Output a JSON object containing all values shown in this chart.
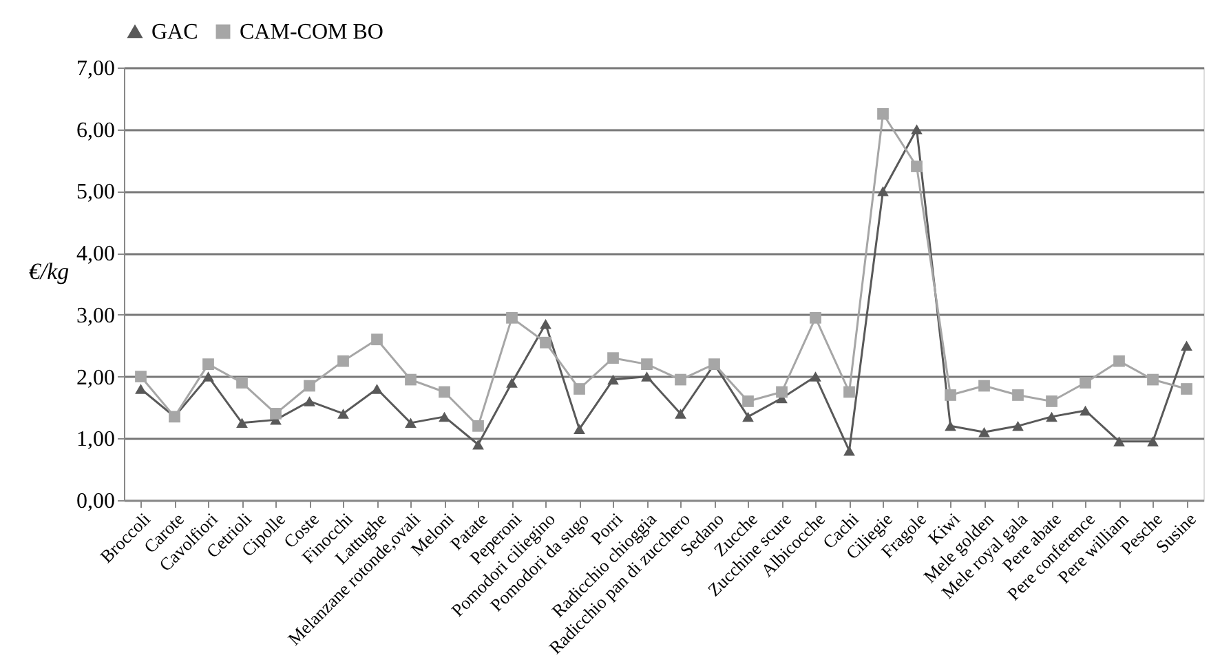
{
  "chart_data": {
    "type": "line",
    "ylabel": "€/kg",
    "categories": [
      "Broccoli",
      "Carote",
      "Cavolfiori",
      "Cetrioli",
      "Cipolle",
      "Coste",
      "Finocchi",
      "Lattughe",
      "Melanzane rotonde,ovali",
      "Meloni",
      "Patate",
      "Peperoni",
      "Pomodori ciliegino",
      "Pomodori da sugo",
      "Porri",
      "Radicchio chioggia",
      "Radicchio pan di zucchero",
      "Sedano",
      "Zucche",
      "Zucchine scure",
      "Albicocche",
      "Cachi",
      "Ciliegie",
      "Fragole",
      "Kiwi",
      "Mele golden",
      "Mele royal gala",
      "Pere abate",
      "Pere conference",
      "Pere william",
      "Pesche",
      "Susine"
    ],
    "series": [
      {
        "name": "GAC",
        "color": "#595959",
        "marker": "triangle",
        "values": [
          1.8,
          1.35,
          2.0,
          1.25,
          1.3,
          1.6,
          1.4,
          1.8,
          1.25,
          1.35,
          0.9,
          1.9,
          2.85,
          1.15,
          1.95,
          2.0,
          1.4,
          2.2,
          1.35,
          1.65,
          2.0,
          0.8,
          5.0,
          6.0,
          1.2,
          1.1,
          1.2,
          1.35,
          1.45,
          0.95,
          0.95,
          2.5
        ]
      },
      {
        "name": "CAM-COM BO",
        "color": "#a6a6a6",
        "marker": "square",
        "values": [
          2.0,
          1.35,
          2.2,
          1.9,
          1.4,
          1.85,
          2.25,
          2.6,
          1.95,
          1.75,
          1.2,
          2.95,
          2.55,
          1.8,
          2.3,
          2.2,
          1.95,
          2.2,
          1.6,
          1.75,
          2.95,
          1.75,
          6.25,
          5.4,
          1.7,
          1.85,
          1.7,
          1.6,
          1.9,
          2.25,
          1.95,
          1.8
        ]
      }
    ],
    "ylim": [
      0,
      7
    ],
    "yticks": [
      {
        "value": 0,
        "label": "0,00"
      },
      {
        "value": 1,
        "label": "1,00"
      },
      {
        "value": 2,
        "label": "2,00"
      },
      {
        "value": 3,
        "label": "3,00"
      },
      {
        "value": 4,
        "label": "4,00"
      },
      {
        "value": 5,
        "label": "5,00"
      },
      {
        "value": 6,
        "label": "6,00"
      },
      {
        "value": 7,
        "label": "7,00"
      }
    ],
    "grid": "y",
    "legend": "top",
    "line_style": "solid"
  }
}
